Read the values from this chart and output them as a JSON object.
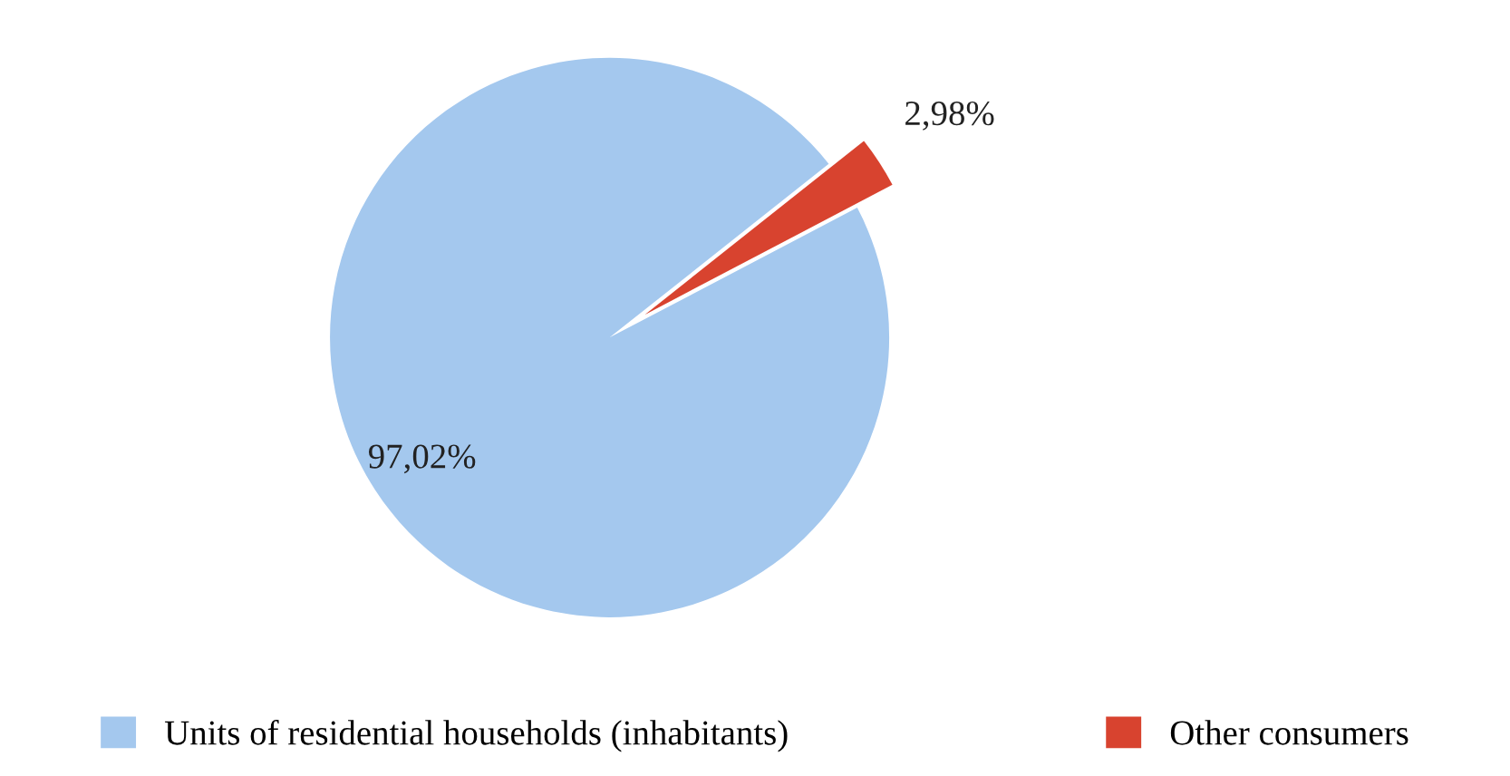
{
  "chart_data": {
    "type": "pie",
    "categories": [
      "Units of residential households (inhabitants)",
      "Other consumers"
    ],
    "values": [
      97.02,
      2.98
    ],
    "colors": [
      "#a4c8ee",
      "#d8432f"
    ],
    "value_labels": [
      "97,02%",
      "2,98%"
    ],
    "legend": "bottom"
  }
}
